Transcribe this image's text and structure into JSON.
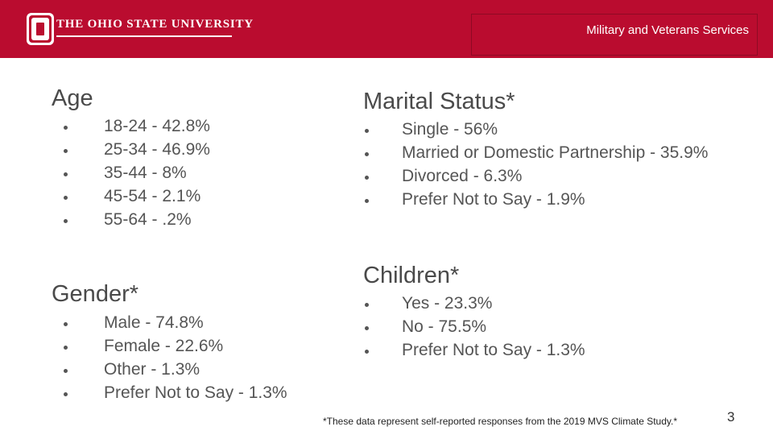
{
  "header": {
    "university": "The Ohio State University",
    "department": "Military and Veterans Services",
    "brand_color": "#ba0c2f",
    "logo_icon": "block-o-icon"
  },
  "age": {
    "title": "Age",
    "items": [
      "18-24 - 42.8%",
      "25-34 - 46.9%",
      "35-44 - 8%",
      "45-54 - 2.1%",
      "55-64 - .2%"
    ]
  },
  "gender": {
    "title": "Gender*",
    "items": [
      "Male - 74.8%",
      "Female - 22.6%",
      "Other - 1.3%",
      "Prefer Not to Say - 1.3%"
    ]
  },
  "marital": {
    "title": "Marital Status*",
    "items": [
      "Single - 56%",
      "Married or Domestic Partnership - 35.9%",
      "Divorced - 6.3%",
      "Prefer Not to Say - 1.9%"
    ]
  },
  "children": {
    "title": "Children*",
    "items": [
      "Yes - 23.3%",
      "No - 75.5%",
      "Prefer Not to Say - 1.3%"
    ]
  },
  "footnote": "*These data represent self-reported responses from the 2019 MVS Climate Study.*",
  "page_number": "3"
}
